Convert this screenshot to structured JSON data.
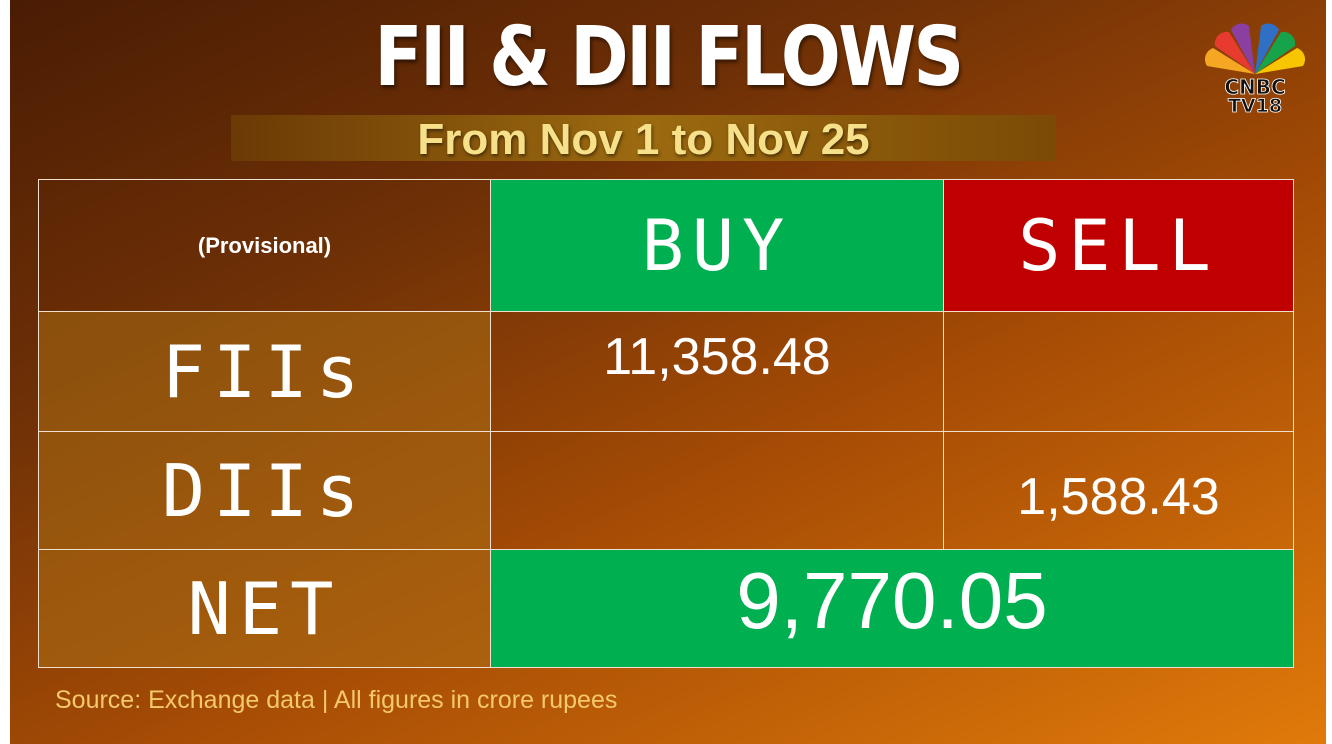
{
  "header": {
    "title": "FII & DII FLOWS",
    "subtitle": "From Nov 1 to Nov 25"
  },
  "logo": {
    "brand": "CNBC",
    "network": "TV18"
  },
  "table": {
    "columns": [
      "(Provisional)",
      "BUY",
      "SELL"
    ],
    "rows": [
      {
        "label": "FIIs",
        "buy": "11,358.48"
      },
      {
        "label": "DIIs",
        "sell": "1,588.43"
      },
      {
        "label": "NET",
        "net": "9,770.05"
      }
    ]
  },
  "footer": {
    "source": "Source: Exchange data | All figures in crore rupees"
  }
}
